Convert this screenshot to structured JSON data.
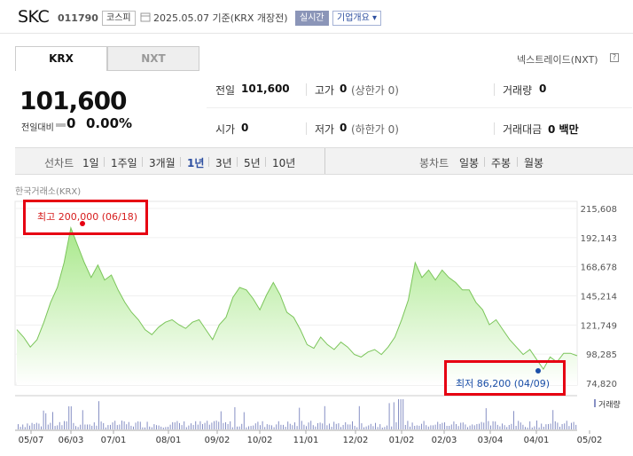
{
  "header": {
    "name": "SKC",
    "code": "011790",
    "market": "코스피",
    "date": "2025.05.07",
    "date_suffix": "기준(KRX 개장전)",
    "realtime": "실시간",
    "corp_info": "기업개요"
  },
  "tabs": {
    "krx": "KRX",
    "nxt": "NXT",
    "nxt_link": "넥스트레이드(NXT)",
    "help": "?"
  },
  "price": {
    "current": "101,600",
    "change_label": "전일대비",
    "change_value": "0",
    "change_rate": "0.00%"
  },
  "stats": {
    "prev_label": "전일",
    "prev_value": "101,600",
    "high_label": "고가",
    "high_value": "0",
    "high_sub": "(상한가 0)",
    "volume_label": "거래량",
    "volume_value": "0",
    "open_label": "시가",
    "open_value": "0",
    "low_label": "저가",
    "low_value": "0",
    "low_sub": "(하한가 0)",
    "amount_label": "거래대금",
    "amount_value": "0 백만"
  },
  "period_bar": {
    "line_label": "선차트",
    "line_items": [
      "1일",
      "1주일",
      "3개월",
      "1년",
      "3년",
      "5년",
      "10년"
    ],
    "active": "1년",
    "candle_label": "봉차트",
    "candle_items": [
      "일봉",
      "주봉",
      "월봉"
    ]
  },
  "chart_data": {
    "type": "area",
    "title": "한국거래소(KRX)",
    "y_ticks": [
      "215,608",
      "192,143",
      "168,678",
      "145,214",
      "121,749",
      "98,285",
      "74,820"
    ],
    "ylim": [
      74820,
      215608
    ],
    "x_ticks": [
      "05/07",
      "06/03",
      "07/01",
      "08/01",
      "09/02",
      "10/02",
      "11/01",
      "12/02",
      "01/02",
      "02/03",
      "03/04",
      "04/01",
      "05/02"
    ],
    "series": [
      {
        "values": [
          118000,
          112000,
          104000,
          110000,
          124000,
          140000,
          152000,
          172000,
          200000,
          186000,
          172000,
          160000,
          170000,
          158000,
          162000,
          150000,
          140000,
          132000,
          126000,
          118000,
          114000,
          120000,
          124000,
          126000,
          122000,
          119000,
          124000,
          126000,
          118000,
          110000,
          122000,
          128000,
          144000,
          152000,
          150000,
          143000,
          134000,
          146000,
          156000,
          146000,
          132000,
          128000,
          118000,
          106000,
          103000,
          112000,
          106000,
          102000,
          108000,
          104000,
          98000,
          96000,
          100000,
          102000,
          98000,
          104000,
          112000,
          126000,
          142000,
          172000,
          160000,
          166000,
          158000,
          166000,
          160000,
          156000,
          150000,
          150000,
          140000,
          134000,
          122000,
          126000,
          118000,
          110000,
          104000,
          98000,
          102000,
          94000,
          86200,
          96000,
          92000,
          99000,
          99000,
          97000
        ]
      }
    ],
    "high_annotation": "최고 200,000 (06/18)",
    "low_annotation": "최저 86,200 (04/09)",
    "volume_legend": "거래량"
  }
}
